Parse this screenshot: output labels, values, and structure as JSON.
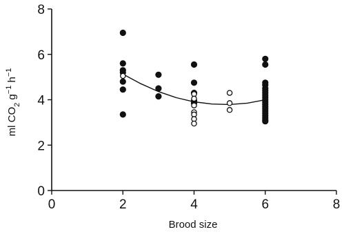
{
  "chart_data": {
    "type": "scatter",
    "xlabel": "Brood size",
    "ylabel": {
      "base": "ml CO",
      "subscript": "2",
      "unit1": "g",
      "unit1_exp": "−1",
      "unit2": "h",
      "unit2_exp": "−1"
    },
    "xlim": [
      0,
      8
    ],
    "ylim": [
      0,
      8
    ],
    "xticks": [
      "0",
      "2",
      "4",
      "6",
      "8"
    ],
    "yticks": [
      "0",
      "2",
      "4",
      "6",
      "8"
    ],
    "grid": false,
    "legend": "none",
    "series": [
      {
        "marker": "filled-circle",
        "points": [
          [
            2,
            6.95
          ],
          [
            2,
            5.6
          ],
          [
            2,
            5.3
          ],
          [
            2,
            5.2
          ],
          [
            2,
            4.8
          ],
          [
            2,
            4.45
          ],
          [
            2,
            3.35
          ],
          [
            3,
            5.1
          ],
          [
            3,
            4.5
          ],
          [
            3,
            4.15
          ],
          [
            4,
            5.55
          ],
          [
            4,
            4.75
          ],
          [
            4,
            4.3
          ],
          [
            4,
            3.95
          ],
          [
            4,
            3.85
          ],
          [
            6,
            5.8
          ],
          [
            6,
            5.55
          ],
          [
            6,
            4.75
          ],
          [
            6,
            4.65
          ],
          [
            6,
            4.5
          ],
          [
            6,
            4.4
          ],
          [
            6,
            4.3
          ],
          [
            6,
            4.2
          ],
          [
            6,
            4.1
          ],
          [
            6,
            4.0
          ],
          [
            6,
            3.9
          ],
          [
            6,
            3.8
          ],
          [
            6,
            3.7
          ],
          [
            6,
            3.6
          ],
          [
            6,
            3.5
          ],
          [
            6,
            3.4
          ],
          [
            6,
            3.3
          ],
          [
            6,
            3.2
          ],
          [
            6,
            3.1
          ],
          [
            6,
            3.05
          ]
        ]
      },
      {
        "marker": "open-circle",
        "points": [
          [
            2,
            5.05
          ],
          [
            4,
            4.25
          ],
          [
            4,
            4.05
          ],
          [
            4,
            3.75
          ],
          [
            4,
            3.45
          ],
          [
            4,
            3.35
          ],
          [
            4,
            3.15
          ],
          [
            4,
            2.95
          ],
          [
            5,
            4.3
          ],
          [
            5,
            3.85
          ],
          [
            5,
            3.55
          ]
        ]
      }
    ],
    "fit_curve": {
      "type": "quadratic",
      "points": [
        [
          2,
          5.13
        ],
        [
          2.5,
          4.71
        ],
        [
          3,
          4.36
        ],
        [
          3.5,
          4.09
        ],
        [
          4,
          3.91
        ],
        [
          4.5,
          3.81
        ],
        [
          5,
          3.79
        ],
        [
          5.5,
          3.85
        ],
        [
          6,
          4.0
        ]
      ]
    },
    "colors": {
      "axis": "#111111",
      "marker": "#111111",
      "open_fill": "#ffffff",
      "curve": "#111111"
    }
  }
}
